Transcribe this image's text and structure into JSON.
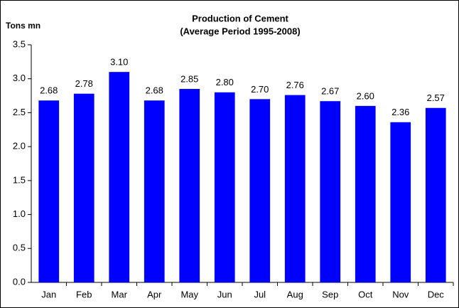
{
  "chart_data": {
    "type": "bar",
    "title": "Production of Cement",
    "subtitle": "(Average Period 1995-2008)",
    "y_label": "Tons mn",
    "categories": [
      "Jan",
      "Feb",
      "Mar",
      "Apr",
      "May",
      "Jun",
      "Jul",
      "Aug",
      "Sep",
      "Oct",
      "Nov",
      "Dec"
    ],
    "values": [
      2.68,
      2.78,
      3.1,
      2.68,
      2.85,
      2.8,
      2.7,
      2.76,
      2.67,
      2.6,
      2.36,
      2.57
    ],
    "value_labels": [
      "2.68",
      "2.78",
      "3.10",
      "2.68",
      "2.85",
      "2.80",
      "2.70",
      "2.76",
      "2.67",
      "2.60",
      "2.36",
      "2.57"
    ],
    "color": "#0000ff",
    "ylim": [
      0,
      3.5
    ],
    "yticks": [
      {
        "value": 0,
        "label": "0.0"
      },
      0.5,
      {
        "value": 1,
        "label": "1.0"
      },
      1.5,
      {
        "value": 2,
        "label": "2.0"
      },
      2.5,
      {
        "value": 3,
        "label": "3.0"
      },
      3.5
    ],
    "grid": false
  }
}
